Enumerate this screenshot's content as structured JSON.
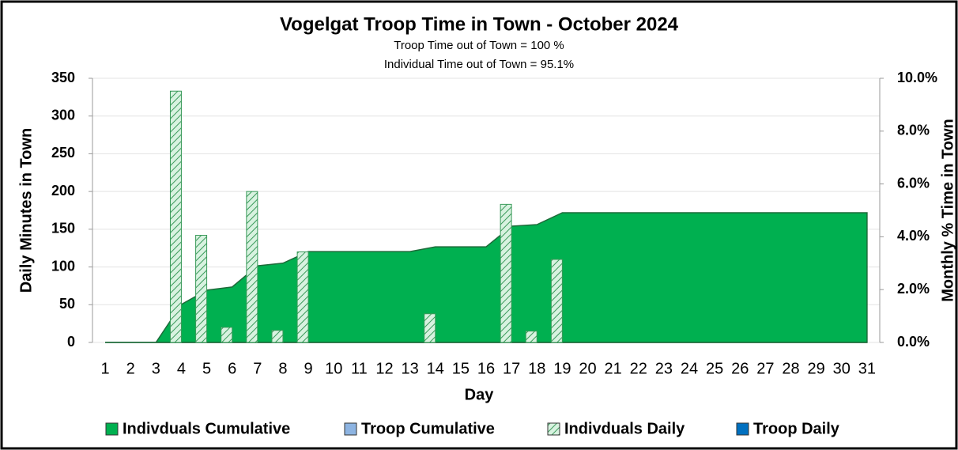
{
  "chart_data": {
    "type": "combo",
    "title": "Vogelgat Troop Time in Town - October 2024",
    "subtitles": [
      "Troop Time out of Town = 100 %",
      "Individual Time out of Town = 95.1%"
    ],
    "x_label": "Day",
    "y_label": "Daily Minutes in Town",
    "y2_label": "Monthly % Time in Town",
    "categories": [
      "1",
      "2",
      "3",
      "4",
      "5",
      "6",
      "7",
      "8",
      "9",
      "10",
      "11",
      "12",
      "13",
      "14",
      "15",
      "16",
      "17",
      "18",
      "19",
      "20",
      "21",
      "22",
      "23",
      "24",
      "25",
      "26",
      "27",
      "28",
      "29",
      "30",
      "31"
    ],
    "ylim": [
      0,
      350
    ],
    "yticks": [
      0,
      50,
      100,
      150,
      200,
      250,
      300,
      350
    ],
    "y2lim": [
      0,
      10
    ],
    "y2ticks": [
      {
        "value": 0,
        "label": "0.0%"
      },
      {
        "value": 2,
        "label": "2.0%"
      },
      {
        "value": 4,
        "label": "4.0%"
      },
      {
        "value": 6,
        "label": "6.0%"
      },
      {
        "value": 8,
        "label": "8.0%"
      },
      {
        "value": 10,
        "label": "10.0%"
      }
    ],
    "grid": true,
    "series": [
      {
        "name": "Indivduals Cumulative",
        "type": "area",
        "axis": "y2",
        "color": "#00b050",
        "values": [
          0,
          0,
          0,
          1.44,
          1.98,
          2.1,
          2.9,
          3.0,
          3.44,
          3.44,
          3.44,
          3.44,
          3.44,
          3.62,
          3.62,
          3.62,
          4.4,
          4.46,
          4.91,
          4.91,
          4.91,
          4.91,
          4.91,
          4.91,
          4.91,
          4.91,
          4.91,
          4.91,
          4.91,
          4.91,
          4.91
        ]
      },
      {
        "name": "Troop Cumulative",
        "type": "area",
        "axis": "y2",
        "color": "#8db4e2",
        "values": [
          0,
          0,
          0,
          0,
          0,
          0,
          0,
          0,
          0,
          0,
          0,
          0,
          0,
          0,
          0,
          0,
          0,
          0,
          0,
          0,
          0,
          0,
          0,
          0,
          0,
          0,
          0,
          0,
          0,
          0,
          0
        ]
      },
      {
        "name": "Indivduals Daily",
        "type": "bar",
        "color": "#00b050",
        "hatch": true,
        "values": [
          0,
          0,
          0,
          333,
          142,
          20,
          200,
          16,
          120,
          0,
          0,
          0,
          0,
          38,
          0,
          0,
          183,
          15,
          110,
          0,
          0,
          0,
          0,
          0,
          0,
          0,
          0,
          0,
          0,
          0,
          0
        ]
      },
      {
        "name": "Troop Daily",
        "type": "bar",
        "color": "#0070c0",
        "values": [
          0,
          0,
          0,
          0,
          0,
          0,
          0,
          0,
          0,
          0,
          0,
          0,
          0,
          0,
          0,
          0,
          0,
          0,
          0,
          0,
          0,
          0,
          0,
          0,
          0,
          0,
          0,
          0,
          0,
          0,
          0
        ]
      }
    ]
  }
}
